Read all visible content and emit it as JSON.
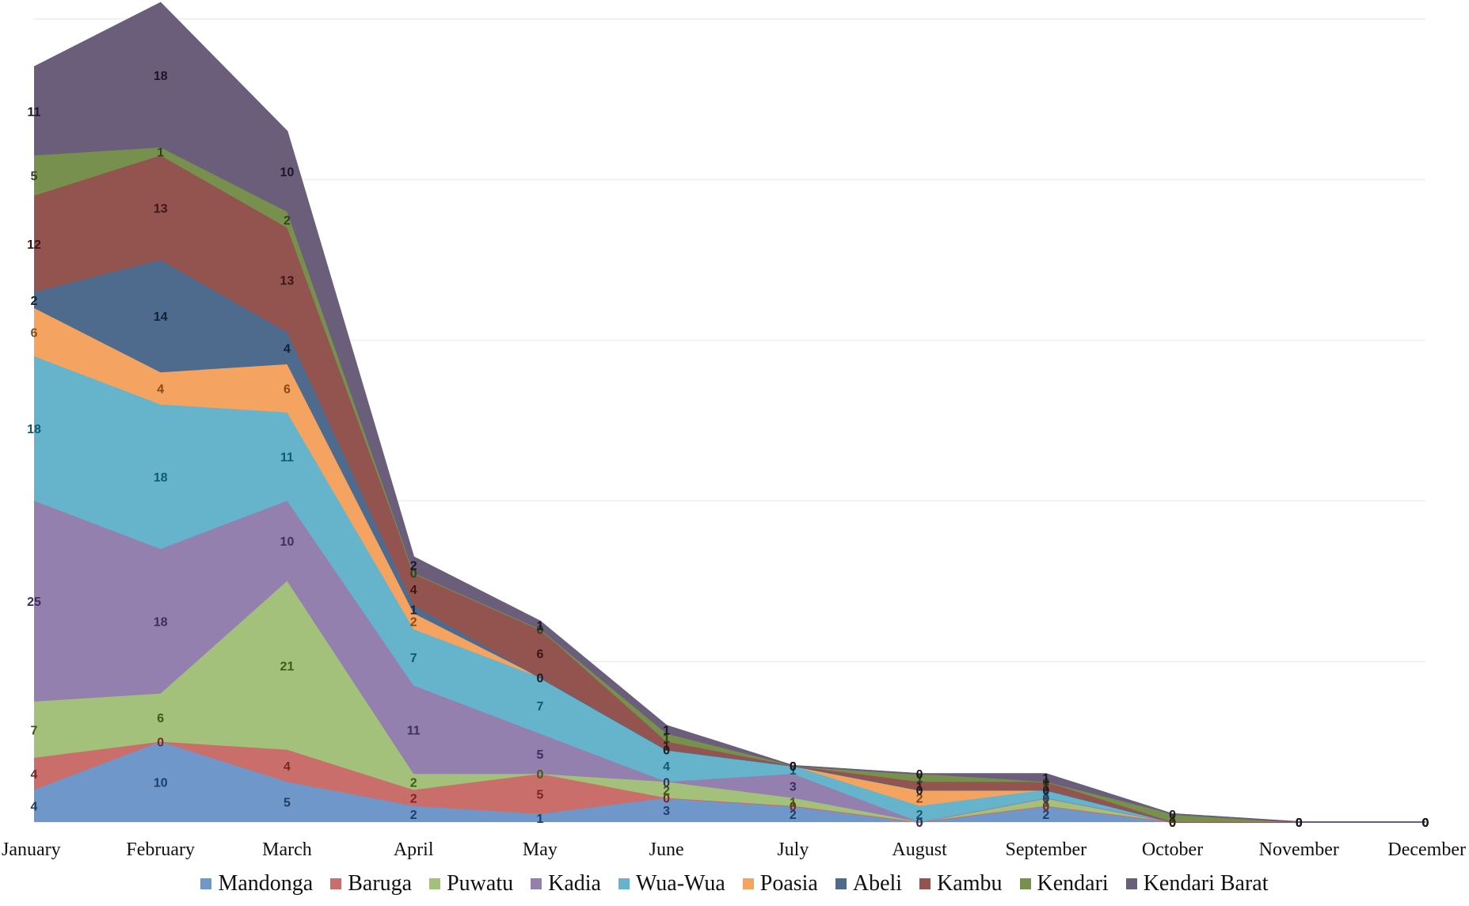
{
  "chart_data": {
    "type": "area",
    "stacked": true,
    "categories": [
      "January",
      "February",
      "March",
      "April",
      "May",
      "June",
      "July",
      "August",
      "September",
      "October",
      "November",
      "December"
    ],
    "series": [
      {
        "name": "Mandonga",
        "color": "#6f97c9",
        "values": [
          4,
          10,
          5,
          2,
          1,
          3,
          2,
          0,
          2,
          0,
          0,
          0
        ]
      },
      {
        "name": "Baruga",
        "color": "#c96e6b",
        "values": [
          4,
          0,
          4,
          2,
          5,
          0,
          0,
          0,
          0,
          0,
          0,
          0
        ]
      },
      {
        "name": "Puwatu",
        "color": "#a3c17a",
        "values": [
          7,
          6,
          21,
          2,
          0,
          2,
          1,
          0,
          1,
          0,
          0,
          0
        ]
      },
      {
        "name": "Kadia",
        "color": "#9380ae",
        "values": [
          25,
          18,
          10,
          11,
          5,
          0,
          3,
          0,
          0,
          0,
          0,
          0
        ]
      },
      {
        "name": "Wua-Wua",
        "color": "#66b4cb",
        "values": [
          18,
          18,
          11,
          7,
          7,
          4,
          1,
          2,
          1,
          0,
          0,
          0
        ]
      },
      {
        "name": "Poasia",
        "color": "#f4a460",
        "values": [
          6,
          4,
          6,
          2,
          0,
          0,
          0,
          2,
          0,
          0,
          0,
          0
        ]
      },
      {
        "name": "Abeli",
        "color": "#4e6a8c",
        "values": [
          2,
          14,
          4,
          1,
          0,
          0,
          0,
          0,
          0,
          0,
          0,
          0
        ]
      },
      {
        "name": "Kambu",
        "color": "#935450",
        "values": [
          12,
          13,
          13,
          4,
          6,
          1,
          0,
          1,
          1,
          0,
          0,
          0
        ]
      },
      {
        "name": "Kendari",
        "color": "#77904e",
        "values": [
          5,
          1,
          2,
          0,
          0,
          1,
          0,
          1,
          0,
          1,
          0,
          0
        ]
      },
      {
        "name": "Kendari Barat",
        "color": "#6b5e7a",
        "values": [
          11,
          18,
          10,
          2,
          1,
          1,
          0,
          0,
          1,
          0,
          0,
          0
        ]
      }
    ],
    "label_colors": [
      "#1f3e66",
      "#7a2622",
      "#3d5a18",
      "#3d2d60",
      "#105a6e",
      "#8a4a10",
      "#0f2238",
      "#3d1512",
      "#2e4414",
      "#1b1626"
    ],
    "ylim": [
      0,
      100
    ],
    "grid": true,
    "legend_position": "bottom",
    "data_labels": true
  }
}
